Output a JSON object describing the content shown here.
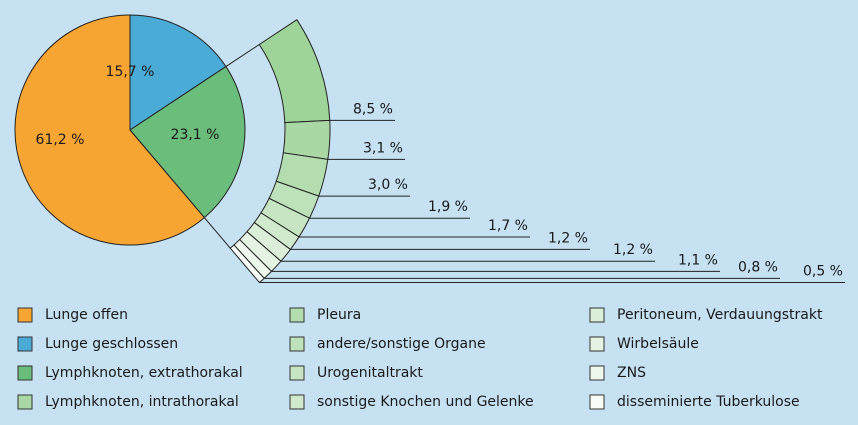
{
  "chart_data": {
    "type": "pie",
    "categories": [
      "Lunge offen",
      "Lunge geschlossen",
      null
    ],
    "values": [
      61.2,
      15.7,
      23.1
    ],
    "value_labels": [
      "61,2 %",
      "15,7 %",
      "23,1 %"
    ],
    "colors": [
      "#f7a532",
      "#4aabd6",
      "#6abd7b"
    ],
    "breakdown": {
      "categories": [
        "Lymphknoten, extrathorakal",
        "Lymphknoten, intrathorakal",
        "Pleura",
        "andere/sonstige Organe",
        "Urogenitaltrakt",
        "sonstige Knochen und Gelenke",
        "Peritoneum, Verdauungstrakt",
        "Wirbelsäule",
        "ZNS",
        "disseminierte Tuberkulose"
      ],
      "values": [
        8.5,
        3.1,
        3.0,
        1.9,
        1.7,
        1.2,
        1.2,
        1.1,
        0.8,
        0.5
      ],
      "value_labels": [
        "8,5 %",
        "3,1 %",
        "3,0 %",
        "1,9 %",
        "1,7 %",
        "1,2 %",
        "1,2 %",
        "1,1 %",
        "0,8 %",
        "0,5 %"
      ],
      "colors": [
        "#9ed39a",
        "#a9d8a4",
        "#b3dcaf",
        "#bde1b9",
        "#c7e5c3",
        "#d1eacd",
        "#dbeed7",
        "#e5f3e2",
        "#eef7ec",
        "#f8fcf7"
      ]
    }
  }
}
